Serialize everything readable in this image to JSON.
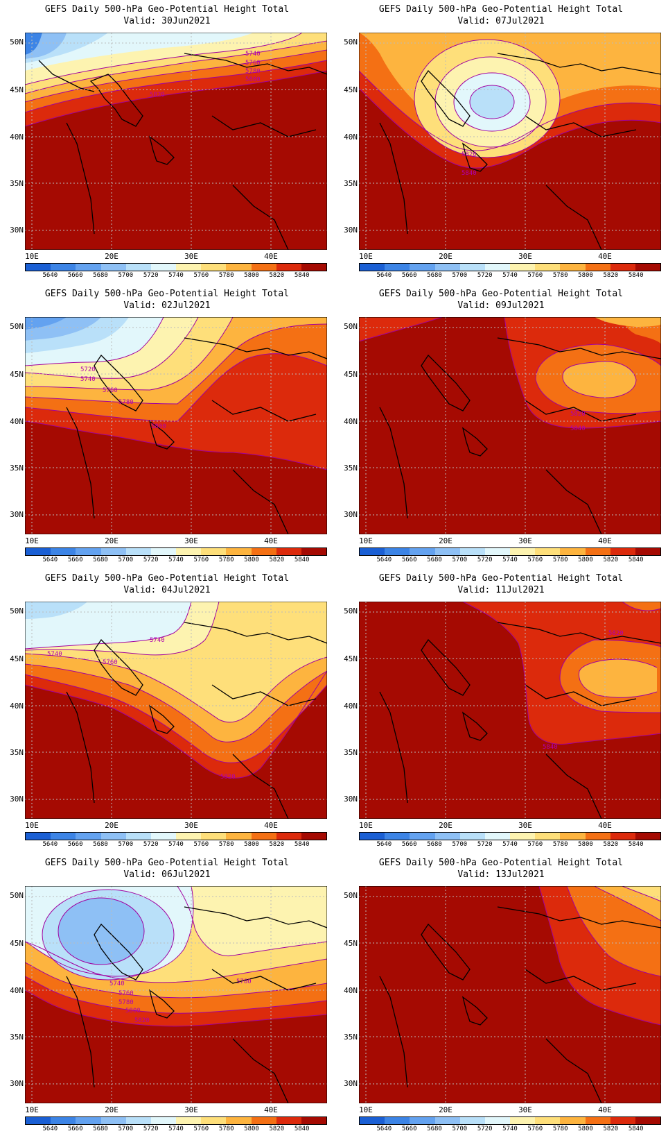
{
  "title_line1": "GEFS Daily 500-hPa Geo-Potential Height Total",
  "valid_prefix": "Valid: ",
  "lat_labels": [
    "50N",
    "45N",
    "40N",
    "35N",
    "30N"
  ],
  "lon_labels": [
    "10E",
    "20E",
    "30E",
    "40E"
  ],
  "colorbar": {
    "levels": [
      "5640",
      "5660",
      "5680",
      "5700",
      "5720",
      "5740",
      "5760",
      "5780",
      "5800",
      "5820",
      "5840"
    ],
    "colors": [
      "#1a5fd4",
      "#3c84e6",
      "#63a2f0",
      "#8ec0f5",
      "#b9e0f9",
      "#e2f7fb",
      "#fdf3b0",
      "#fedf7a",
      "#fdb43f",
      "#f47014",
      "#dc2a0c",
      "#a50a02"
    ]
  },
  "panels": [
    {
      "id": "p1",
      "valid": "Valid: 30Jun2021",
      "contour_labels": [
        "5740",
        "5760",
        "5780",
        "5800",
        "5820"
      ]
    },
    {
      "id": "p2",
      "valid": "Valid: 07Jul2021",
      "contour_labels": [
        "5820",
        "5840"
      ]
    },
    {
      "id": "p3",
      "valid": "Valid: 02Jul2021",
      "contour_labels": [
        "5720",
        "5740",
        "5760",
        "5780",
        "5800"
      ]
    },
    {
      "id": "p4",
      "valid": "Valid: 09Jul2021",
      "contour_labels": [
        "5820",
        "5840"
      ]
    },
    {
      "id": "p5",
      "valid": "Valid: 04Jul2021",
      "contour_labels": [
        "5740",
        "5740",
        "5760",
        "5820"
      ]
    },
    {
      "id": "p6",
      "valid": "Valid: 11Jul2021",
      "contour_labels": [
        "5820",
        "5840"
      ]
    },
    {
      "id": "p7",
      "valid": "Valid: 06Jul2021",
      "contour_labels": [
        "5740",
        "5760",
        "5780",
        "5800",
        "5820",
        "5780"
      ]
    },
    {
      "id": "p8",
      "valid": "Valid: 13Jul2021",
      "contour_labels": []
    }
  ]
}
